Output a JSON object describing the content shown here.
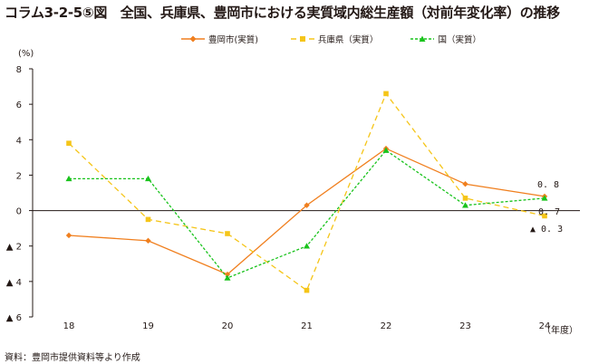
{
  "title": "コラム3-2-5⑤図　全国、兵庫県、豊岡市における実質域内総生産額（対前年変化率）の推移",
  "source": "資料：豊岡市提供資料等より作成",
  "chart_data": {
    "type": "line",
    "categories": [
      "18",
      "19",
      "20",
      "21",
      "22",
      "23",
      "24"
    ],
    "xlabel": "（年度）",
    "ylabel": "(%)",
    "ylim": [
      -6,
      8
    ],
    "yticks": [
      8,
      6,
      4,
      2,
      0,
      -2,
      -4,
      -6
    ],
    "ytick_labels": [
      "8",
      "6",
      "4",
      "2",
      "0",
      "▲ 2",
      "▲ 4",
      "▲ 6"
    ],
    "grid": false,
    "legend_position": "top",
    "series": [
      {
        "name": "豊岡市(実質)",
        "color": "#f07f1e",
        "marker": "diamond",
        "dash": "",
        "values": [
          -1.4,
          -1.7,
          -3.6,
          0.3,
          3.5,
          1.5,
          0.8
        ]
      },
      {
        "name": "兵庫県（実質）",
        "color": "#f5c518",
        "marker": "square",
        "dash": "6,4",
        "values": [
          3.8,
          -0.5,
          -1.3,
          -4.5,
          6.6,
          0.7,
          -0.3
        ]
      },
      {
        "name": "国（実質）",
        "color": "#19c31c",
        "marker": "triangle",
        "dash": "3,2",
        "values": [
          1.8,
          1.8,
          -3.8,
          -2.0,
          3.4,
          0.3,
          0.7
        ]
      }
    ],
    "data_labels": [
      {
        "text": "0. 8",
        "value": 0.8
      },
      {
        "text": "0. 7",
        "value": 0.7
      },
      {
        "text": "▲ 0. 3",
        "value": -0.3
      }
    ]
  }
}
